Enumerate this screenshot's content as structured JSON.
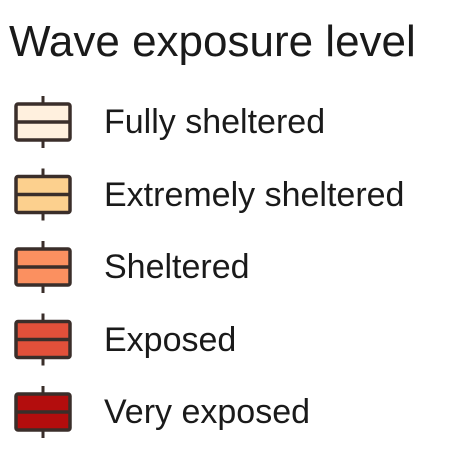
{
  "chart_data": {
    "type": "legend",
    "title": "Wave exposure level",
    "key_glyph": "boxplot",
    "entries": [
      {
        "label": "Fully sheltered",
        "fill": "#fff0de"
      },
      {
        "label": "Extremely sheltered",
        "fill": "#fcd08e"
      },
      {
        "label": "Sheltered",
        "fill": "#fb9060"
      },
      {
        "label": "Exposed",
        "fill": "#e2503a"
      },
      {
        "label": "Very exposed",
        "fill": "#b30d0d"
      }
    ],
    "outline_color": "#3a2e2a"
  }
}
